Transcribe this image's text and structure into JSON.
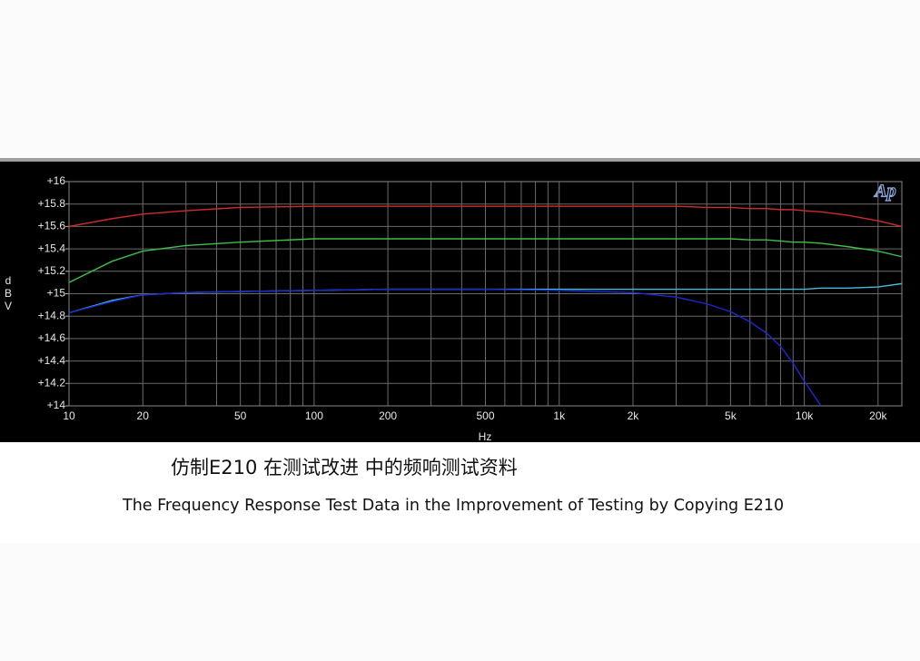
{
  "chart_data": {
    "type": "line",
    "title": "仿制E210 在测试改进 中的频响测试资料",
    "subtitle": "The Frequency Response Test Data in the Improvement of Testing by Copying E210",
    "xlabel": "Hz",
    "ylabel": "dBV",
    "logo": "Ap",
    "xscale": "log",
    "grid": true,
    "x": [
      10,
      15,
      20,
      30,
      50,
      100,
      200,
      500,
      1000,
      2000,
      3000,
      4000,
      5000,
      6000,
      7000,
      8000,
      9000,
      10000,
      11700,
      15000,
      20000,
      25000
    ],
    "series": [
      {
        "color": "#d02a2c",
        "values": [
          15.6,
          15.67,
          15.71,
          15.74,
          15.77,
          15.78,
          15.78,
          15.78,
          15.78,
          15.78,
          15.78,
          15.77,
          15.77,
          15.76,
          15.76,
          15.75,
          15.75,
          15.74,
          15.73,
          15.7,
          15.65,
          15.6
        ]
      },
      {
        "color": "#3cc04a",
        "values": [
          15.1,
          15.29,
          15.38,
          15.43,
          15.46,
          15.49,
          15.49,
          15.49,
          15.49,
          15.49,
          15.49,
          15.49,
          15.49,
          15.48,
          15.48,
          15.47,
          15.46,
          15.46,
          15.45,
          15.42,
          15.38,
          15.33
        ]
      },
      {
        "color": "#4ab8d8",
        "values": [
          14.83,
          14.94,
          14.99,
          15.01,
          15.02,
          15.03,
          15.04,
          15.04,
          15.04,
          15.04,
          15.04,
          15.04,
          15.04,
          15.04,
          15.04,
          15.04,
          15.04,
          15.04,
          15.05,
          15.05,
          15.06,
          15.09
        ]
      },
      {
        "color": "#1a2ad0",
        "values": [
          14.83,
          14.93,
          14.99,
          15.01,
          15.02,
          15.03,
          15.04,
          15.04,
          15.03,
          15.01,
          14.97,
          14.91,
          14.84,
          14.75,
          14.65,
          14.53,
          14.38,
          14.22,
          14.0,
          null,
          null,
          null
        ]
      }
    ],
    "xlim": [
      10,
      25000
    ],
    "xticks": [
      10,
      20,
      50,
      100,
      200,
      500,
      {
        "value": 1000,
        "label": "1k"
      },
      {
        "value": 2000,
        "label": "2k"
      },
      {
        "value": 5000,
        "label": "5k"
      },
      {
        "value": 10000,
        "label": "10k"
      },
      {
        "value": 20000,
        "label": "20k"
      }
    ],
    "xminor": [
      30,
      40,
      60,
      70,
      80,
      90,
      300,
      400,
      600,
      700,
      800,
      900,
      3000,
      4000,
      6000,
      7000,
      8000,
      9000
    ],
    "ylim": [
      14,
      16
    ],
    "yticks": [
      {
        "value": 14,
        "label": "+14"
      },
      {
        "value": 14.2,
        "label": "+14.2"
      },
      {
        "value": 14.4,
        "label": "+14.4"
      },
      {
        "value": 14.6,
        "label": "+14.6"
      },
      {
        "value": 14.8,
        "label": "+14.8"
      },
      {
        "value": 15,
        "label": "+15"
      },
      {
        "value": 15.2,
        "label": "+15.2"
      },
      {
        "value": 15.4,
        "label": "+15.4"
      },
      {
        "value": 15.6,
        "label": "+15.6"
      },
      {
        "value": 15.8,
        "label": "+15.8"
      },
      {
        "value": 16,
        "label": "+16"
      }
    ]
  }
}
